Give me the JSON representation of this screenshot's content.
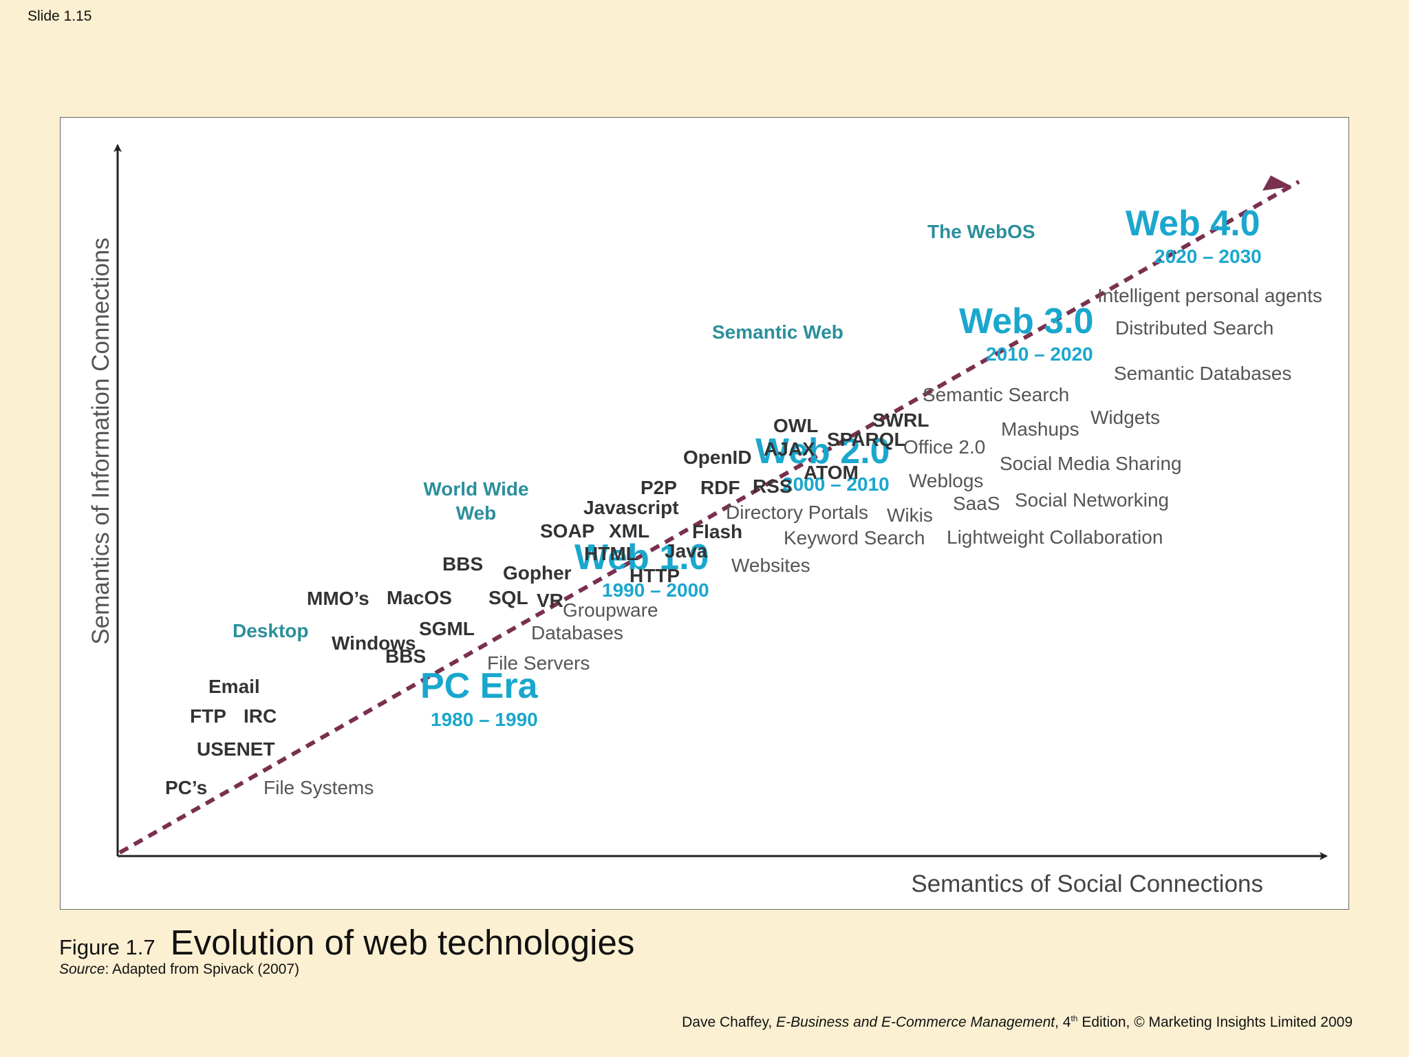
{
  "slide": {
    "label": "Slide 1.15"
  },
  "colors": {
    "era": "#1AA7CE",
    "category": "#2B8F9C",
    "tech": "#333333",
    "app": "#555555",
    "arrow": "#7A3050",
    "axis": "#222222"
  },
  "diagram": {
    "y_axis_label": "Semantics of Information Connections",
    "x_axis_label": "Semantics of Social Connections",
    "eras": [
      {
        "name": "PC Era",
        "years": "1980 – 1990"
      },
      {
        "name": "Web 1.0",
        "years": "1990 – 2000"
      },
      {
        "name": "Web 2.0",
        "years": "2000 – 2010"
      },
      {
        "name": "Web 3.0",
        "years": "2010 – 2020"
      },
      {
        "name": "Web 4.0",
        "years": "2020 – 2030"
      }
    ],
    "categories": [
      "Desktop",
      "World Wide\nWeb",
      "Semantic Web",
      "The WebOS"
    ],
    "technologies": [
      "Email",
      "FTP",
      "IRC",
      "USENET",
      "PC’s",
      "MMO’s",
      "MacOS",
      "SGML",
      "Windows",
      "BBS",
      "BBS",
      "Gopher",
      "SQL",
      "VR",
      "SOAP",
      "XML",
      "HTML",
      "HTTP",
      "Java",
      "Javascript",
      "P2P",
      "RDF",
      "Flash",
      "RSS",
      "OpenID",
      "AJAX",
      "OWL",
      "ATOM",
      "SPARQL",
      "SWRL"
    ],
    "applications": [
      "File Systems",
      "File Servers",
      "Databases",
      "Groupware",
      "Websites",
      "Keyword Search",
      "Directory Portals",
      "Wikis",
      "Weblogs",
      "Office 2.0",
      "Lightweight Collaboration",
      "SaaS",
      "Social Networking",
      "Social Media Sharing",
      "Mashups",
      "Semantic Search",
      "Widgets",
      "Semantic Databases",
      "Distributed Search",
      "Intelligent personal agents"
    ]
  },
  "caption": {
    "figure": "Figure 1.7",
    "title": "Evolution of web technologies",
    "source_label": "Source",
    "source_text": ": Adapted from Spivack (2007)"
  },
  "credit": {
    "author": "Dave Chaffey, ",
    "book": "E-Business and E-Commerce Management",
    "edition_num": ", 4",
    "edition_sup": "th",
    "rest": " Edition, © Marketing Insights Limited 2009"
  }
}
